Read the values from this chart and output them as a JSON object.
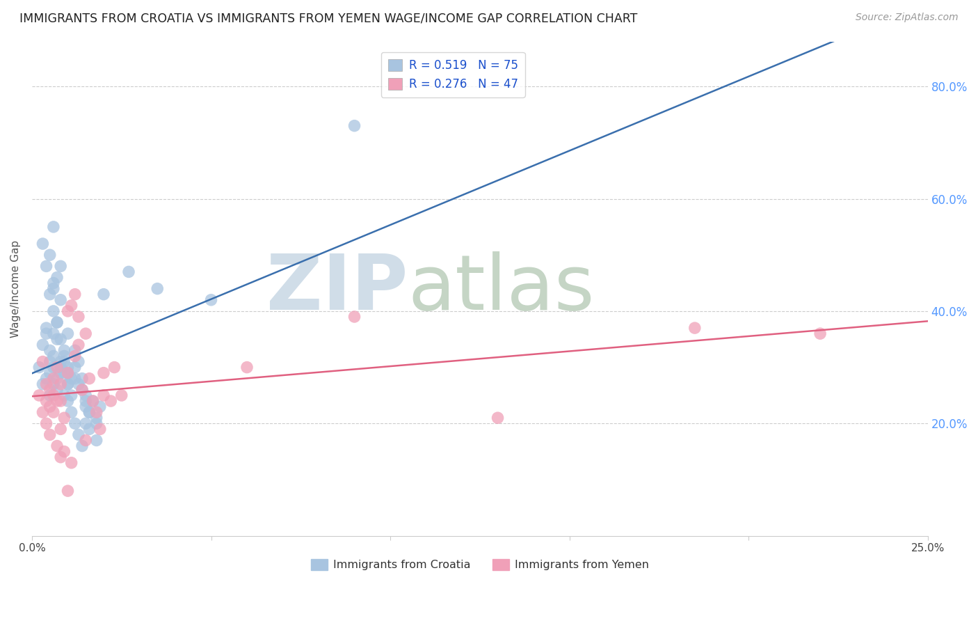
{
  "title": "IMMIGRANTS FROM CROATIA VS IMMIGRANTS FROM YEMEN WAGE/INCOME GAP CORRELATION CHART",
  "source": "Source: ZipAtlas.com",
  "ylabel": "Wage/Income Gap",
  "xmin": 0.0,
  "xmax": 0.25,
  "ymin": 0.0,
  "ymax": 0.88,
  "ytick_labels": [
    "20.0%",
    "40.0%",
    "60.0%",
    "80.0%"
  ],
  "ytick_values": [
    0.2,
    0.4,
    0.6,
    0.8
  ],
  "xtick_positions": [
    0.0,
    0.05,
    0.1,
    0.15,
    0.2,
    0.25
  ],
  "xtick_labels": [
    "0.0%",
    "",
    "",
    "",
    "",
    "25.0%"
  ],
  "croatia_R": 0.519,
  "croatia_N": 75,
  "yemen_R": 0.276,
  "yemen_N": 47,
  "croatia_color": "#a8c4e0",
  "croatia_line_color": "#3a6fad",
  "yemen_color": "#f0a0b8",
  "yemen_line_color": "#e06080",
  "watermark_zip": "ZIP",
  "watermark_atlas": "atlas",
  "watermark_color_zip": "#d0dde8",
  "watermark_color_atlas": "#c5d5c5",
  "legend_color": "#1a4fcc",
  "croatia_scatter_x": [
    0.002,
    0.003,
    0.003,
    0.004,
    0.004,
    0.004,
    0.005,
    0.005,
    0.005,
    0.005,
    0.005,
    0.006,
    0.006,
    0.006,
    0.006,
    0.006,
    0.006,
    0.007,
    0.007,
    0.007,
    0.007,
    0.007,
    0.008,
    0.008,
    0.008,
    0.008,
    0.009,
    0.009,
    0.009,
    0.01,
    0.01,
    0.01,
    0.01,
    0.011,
    0.011,
    0.012,
    0.012,
    0.013,
    0.013,
    0.014,
    0.014,
    0.015,
    0.015,
    0.015,
    0.016,
    0.016,
    0.017,
    0.018,
    0.018,
    0.019,
    0.003,
    0.004,
    0.005,
    0.006,
    0.006,
    0.007,
    0.008,
    0.008,
    0.009,
    0.009,
    0.01,
    0.01,
    0.011,
    0.012,
    0.012,
    0.013,
    0.014,
    0.015,
    0.016,
    0.018,
    0.02,
    0.027,
    0.035,
    0.05,
    0.09
  ],
  "croatia_scatter_y": [
    0.3,
    0.27,
    0.52,
    0.28,
    0.36,
    0.48,
    0.25,
    0.31,
    0.29,
    0.33,
    0.5,
    0.27,
    0.32,
    0.4,
    0.44,
    0.55,
    0.3,
    0.26,
    0.35,
    0.38,
    0.46,
    0.28,
    0.3,
    0.42,
    0.35,
    0.29,
    0.25,
    0.33,
    0.31,
    0.27,
    0.36,
    0.24,
    0.29,
    0.28,
    0.22,
    0.3,
    0.2,
    0.27,
    0.18,
    0.28,
    0.16,
    0.25,
    0.23,
    0.2,
    0.22,
    0.19,
    0.24,
    0.21,
    0.17,
    0.23,
    0.34,
    0.37,
    0.43,
    0.36,
    0.45,
    0.38,
    0.31,
    0.48,
    0.29,
    0.32,
    0.27,
    0.3,
    0.25,
    0.28,
    0.33,
    0.31,
    0.26,
    0.24,
    0.22,
    0.2,
    0.43,
    0.47,
    0.44,
    0.42,
    0.73
  ],
  "yemen_scatter_x": [
    0.002,
    0.003,
    0.003,
    0.004,
    0.004,
    0.004,
    0.005,
    0.005,
    0.005,
    0.006,
    0.006,
    0.006,
    0.007,
    0.007,
    0.007,
    0.008,
    0.008,
    0.008,
    0.009,
    0.009,
    0.01,
    0.01,
    0.011,
    0.011,
    0.012,
    0.012,
    0.013,
    0.013,
    0.014,
    0.015,
    0.015,
    0.016,
    0.017,
    0.018,
    0.019,
    0.02,
    0.02,
    0.022,
    0.023,
    0.025,
    0.06,
    0.09,
    0.13,
    0.185,
    0.22,
    0.01,
    0.008
  ],
  "yemen_scatter_y": [
    0.25,
    0.22,
    0.31,
    0.24,
    0.27,
    0.2,
    0.23,
    0.26,
    0.18,
    0.25,
    0.28,
    0.22,
    0.24,
    0.16,
    0.3,
    0.19,
    0.27,
    0.24,
    0.15,
    0.21,
    0.29,
    0.4,
    0.41,
    0.13,
    0.32,
    0.43,
    0.34,
    0.39,
    0.26,
    0.36,
    0.17,
    0.28,
    0.24,
    0.22,
    0.19,
    0.29,
    0.25,
    0.24,
    0.3,
    0.25,
    0.3,
    0.39,
    0.21,
    0.37,
    0.36,
    0.08,
    0.14
  ]
}
